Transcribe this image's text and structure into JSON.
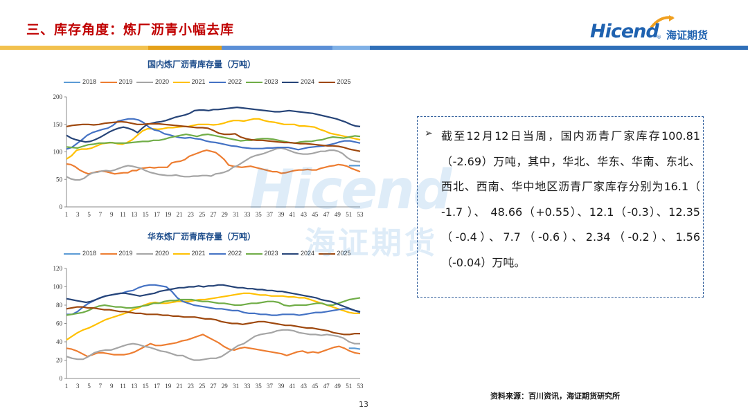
{
  "slide_title": "三、库存角度：炼厂沥青小幅去库",
  "logo": {
    "latin": "Hicend",
    "registered": "®",
    "chinese": "海证期货"
  },
  "watermark": {
    "latin": "Hicend",
    "chinese": "海证期货"
  },
  "colors": {
    "title": "#c00000",
    "band": [
      "#f2c14e",
      "#e5a11a",
      "#5b8fd6",
      "#7fb0e6",
      "#2f6fb8"
    ]
  },
  "textbox": {
    "bullet": "➢",
    "text": "截至12月12日当周，国内沥青厂家库存100.81（-2.69）万吨，其中，华北、华东、华南、东北、西北、西南、华中地区沥青厂家库存分别为16.1（ -1.7 ）、 48.66（+0.55）、12.1（-0.3）、12.35（-0.4）、7.7（-0.6）、2.34（-0.2）、1.56（-0.04）万吨。"
  },
  "source": "资料来源：百川资讯，海证期货研究所",
  "page_number": "13",
  "chart_data": [
    {
      "type": "line",
      "title": "国内炼厂沥青库存量（万吨）",
      "xlabel": "",
      "ylabel": "",
      "ylim": [
        0,
        200
      ],
      "yticks": [
        "0",
        "50",
        "100",
        "150",
        "200"
      ],
      "xticks": [
        "1",
        "3",
        "5",
        "7",
        "9",
        "11",
        "13",
        "15",
        "17",
        "19",
        "21",
        "23",
        "25",
        "27",
        "29",
        "31",
        "33",
        "35",
        "37",
        "39",
        "41",
        "43",
        "45",
        "47",
        "49",
        "51",
        "53"
      ],
      "grid": false,
      "legend": "top",
      "series": [
        {
          "name": "2018",
          "color": "#5b9bd5",
          "values": [
            null,
            null,
            null,
            null,
            null,
            null,
            null,
            null,
            null,
            null,
            null,
            null,
            null,
            null,
            null,
            null,
            null,
            null,
            null,
            null,
            null,
            null,
            null,
            null,
            null,
            null,
            null,
            null,
            null,
            null,
            null,
            null,
            null,
            null,
            null,
            null,
            null,
            null,
            null,
            null,
            null,
            null,
            null,
            null,
            null,
            null,
            null,
            null,
            null,
            null,
            75,
            75,
            75
          ]
        },
        {
          "name": "2019",
          "color": "#ed7d31",
          "values": [
            78,
            77,
            73,
            67,
            63,
            60,
            62,
            64,
            65,
            64,
            62,
            60,
            61,
            62,
            62,
            66,
            66,
            70,
            71,
            72,
            71,
            72,
            72,
            72,
            80,
            82,
            83,
            86,
            92,
            95,
            98,
            101,
            103,
            101,
            99,
            93,
            86,
            76,
            74,
            73,
            72,
            73,
            74,
            72,
            70,
            68,
            66,
            64,
            64,
            61,
            62,
            64,
            66,
            67,
            67,
            68,
            67,
            67,
            70,
            72,
            74,
            75,
            77,
            76,
            74,
            70,
            67,
            64
          ]
        },
        {
          "name": "2020",
          "color": "#a5a5a5",
          "values": [
            55,
            51,
            49,
            49,
            52,
            58,
            62,
            63,
            65,
            66,
            65,
            67,
            70,
            73,
            75,
            74,
            72,
            70,
            66,
            63,
            61,
            59,
            58,
            57,
            57,
            58,
            56,
            55,
            55,
            56,
            56,
            57,
            57,
            56,
            60,
            61,
            63,
            66,
            72,
            75,
            80,
            85,
            90,
            93,
            95,
            97,
            100,
            103,
            106,
            107,
            105,
            102,
            99,
            97,
            96,
            96,
            97,
            99,
            101,
            101,
            103,
            103,
            101,
            97,
            90,
            85,
            83,
            82
          ]
        },
        {
          "name": "2021",
          "color": "#ffc000",
          "values": [
            87,
            93,
            103,
            105,
            105,
            107,
            111,
            115,
            116,
            117,
            115,
            114,
            117,
            122,
            130,
            138,
            142,
            142,
            141,
            142,
            144,
            144,
            145,
            146,
            146,
            148,
            150,
            150,
            150,
            149,
            150,
            152,
            155,
            157,
            157,
            156,
            158,
            160,
            160,
            157,
            155,
            154,
            152,
            150,
            150,
            150,
            147,
            147,
            146,
            145,
            141,
            138,
            134,
            132,
            130,
            128,
            126,
            124,
            122
          ]
        },
        {
          "name": "2022",
          "color": "#4472c4",
          "values": [
            105,
            108,
            115,
            122,
            130,
            135,
            138,
            141,
            143,
            148,
            156,
            158,
            160,
            160,
            158,
            153,
            145,
            140,
            138,
            133,
            131,
            128,
            126,
            125,
            126,
            124,
            123,
            120,
            118,
            117,
            115,
            113,
            111,
            110,
            108,
            107,
            106,
            106,
            106,
            107,
            107,
            108,
            108,
            108,
            106,
            104,
            106,
            108,
            109,
            110,
            111,
            113,
            115,
            118,
            120,
            120,
            118,
            116
          ]
        },
        {
          "name": "2023",
          "color": "#70ad47",
          "values": [
            109,
            108,
            107,
            110,
            113,
            114,
            116,
            116,
            117,
            116,
            116,
            116,
            117,
            118,
            119,
            119,
            121,
            121,
            123,
            126,
            128,
            130,
            132,
            130,
            128,
            131,
            132,
            130,
            128,
            126,
            124,
            122,
            120,
            121,
            121,
            123,
            124,
            124,
            123,
            121,
            119,
            117,
            116,
            118,
            119,
            119,
            121,
            122,
            125,
            127,
            126,
            125,
            127,
            129,
            128
          ]
        },
        {
          "name": "2024",
          "color": "#264478",
          "values": [
            130,
            125,
            122,
            120,
            118,
            119,
            122,
            126,
            131,
            136,
            140,
            143,
            145,
            143,
            140,
            135,
            143,
            150,
            152,
            154,
            155,
            157,
            160,
            163,
            165,
            167,
            170,
            175,
            176,
            176,
            175,
            177,
            177,
            178,
            179,
            180,
            181,
            180,
            179,
            178,
            177,
            176,
            175,
            174,
            173,
            173,
            174,
            175,
            174,
            173,
            172,
            171,
            170,
            168,
            166,
            164,
            162,
            160,
            157,
            154,
            150,
            147,
            146
          ]
        },
        {
          "name": "2025",
          "color": "#9e480e",
          "values": [
            146,
            148,
            149,
            150,
            150,
            149,
            150,
            152,
            153,
            154,
            155,
            154,
            152,
            150,
            150,
            151,
            151,
            151,
            150,
            149,
            148,
            147,
            146,
            145,
            144,
            144,
            143,
            139,
            134,
            132,
            132,
            133,
            127,
            124,
            122,
            121,
            121,
            120,
            119,
            118,
            117,
            117,
            116,
            115,
            115,
            114,
            113,
            112,
            111,
            111,
            110,
            108,
            105,
            103,
            101
          ]
        }
      ]
    },
    {
      "type": "line",
      "title": "华东炼厂沥青库存量（万吨）",
      "xlabel": "",
      "ylabel": "",
      "ylim": [
        0,
        120
      ],
      "yticks": [
        "0",
        "20",
        "40",
        "60",
        "80",
        "100",
        "120"
      ],
      "xticks": [
        "1",
        "3",
        "5",
        "7",
        "9",
        "11",
        "13",
        "15",
        "17",
        "19",
        "21",
        "23",
        "25",
        "27",
        "29",
        "31",
        "33",
        "35",
        "37",
        "39",
        "41",
        "43",
        "45",
        "47",
        "49",
        "51",
        "53"
      ],
      "grid": false,
      "legend": "top",
      "series": [
        {
          "name": "2018",
          "color": "#5b9bd5",
          "values": [
            null,
            null,
            null,
            null,
            null,
            null,
            null,
            null,
            null,
            null,
            null,
            null,
            null,
            null,
            null,
            null,
            null,
            null,
            null,
            null,
            null,
            null,
            null,
            null,
            null,
            null,
            null,
            null,
            null,
            null,
            null,
            null,
            null,
            null,
            null,
            null,
            null,
            null,
            null,
            null,
            null,
            null,
            null,
            null,
            null,
            null,
            null,
            null,
            null,
            null,
            33,
            33,
            32
          ]
        },
        {
          "name": "2019",
          "color": "#ed7d31",
          "values": [
            33,
            32,
            30,
            27,
            24,
            26,
            28,
            28,
            27,
            26,
            26,
            26,
            27,
            29,
            32,
            35,
            38,
            36,
            36,
            37,
            38,
            39,
            41,
            42,
            44,
            46,
            48,
            45,
            42,
            39,
            35,
            32,
            31,
            33,
            34,
            33,
            32,
            31,
            30,
            29,
            28,
            27,
            25,
            27,
            29,
            30,
            28,
            29,
            28,
            30,
            32,
            34,
            35,
            33,
            30,
            28,
            27
          ]
        },
        {
          "name": "2020",
          "color": "#a5a5a5",
          "values": [
            24,
            22,
            21,
            21,
            24,
            28,
            30,
            31,
            31,
            33,
            35,
            37,
            38,
            37,
            35,
            34,
            32,
            30,
            29,
            27,
            25,
            25,
            22,
            20,
            20,
            21,
            22,
            22,
            24,
            28,
            32,
            36,
            38,
            42,
            46,
            48,
            49,
            50,
            52,
            53,
            53,
            52,
            50,
            49,
            48,
            48,
            47,
            48,
            47,
            46,
            44,
            40,
            38,
            38
          ]
        },
        {
          "name": "2021",
          "color": "#ffc000",
          "values": [
            42,
            46,
            50,
            53,
            55,
            58,
            61,
            64,
            66,
            68,
            70,
            72,
            75,
            77,
            80,
            82,
            83,
            82,
            82,
            83,
            84,
            84,
            84,
            85,
            86,
            86,
            87,
            88,
            89,
            90,
            91,
            92,
            93,
            93,
            92,
            91,
            91,
            90,
            90,
            90,
            89,
            89,
            88,
            88,
            86,
            84,
            82,
            80,
            78,
            76,
            74,
            72,
            71,
            71
          ]
        },
        {
          "name": "2022",
          "color": "#4472c4",
          "values": [
            70,
            70,
            73,
            78,
            82,
            85,
            88,
            90,
            91,
            92,
            93,
            95,
            96,
            99,
            101,
            102,
            102,
            101,
            100,
            95,
            88,
            84,
            82,
            80,
            79,
            78,
            77,
            76,
            76,
            75,
            74,
            74,
            72,
            71,
            71,
            70,
            70,
            69,
            69,
            70,
            70,
            70,
            69,
            70,
            71,
            72,
            72,
            73,
            74,
            75,
            76,
            76,
            74,
            72
          ]
        },
        {
          "name": "2023",
          "color": "#70ad47",
          "values": [
            69,
            70,
            71,
            72,
            74,
            77,
            79,
            80,
            79,
            78,
            78,
            77,
            77,
            78,
            79,
            80,
            82,
            82,
            84,
            85,
            85,
            86,
            86,
            86,
            85,
            84,
            84,
            83,
            82,
            82,
            81,
            80,
            80,
            81,
            82,
            82,
            83,
            84,
            84,
            83,
            80,
            79,
            80,
            80,
            80,
            81,
            82,
            82,
            80,
            80,
            82,
            84,
            86,
            87,
            88
          ]
        },
        {
          "name": "2024",
          "color": "#264478",
          "values": [
            87,
            86,
            85,
            84,
            83,
            84,
            86,
            88,
            90,
            91,
            92,
            93,
            93,
            92,
            91,
            90,
            91,
            92,
            93,
            95,
            96,
            97,
            98,
            99,
            99,
            100,
            100,
            101,
            100,
            101,
            101,
            102,
            102,
            101,
            100,
            99,
            99,
            98,
            98,
            97,
            97,
            96,
            96,
            95,
            95,
            94,
            93,
            92,
            91,
            90,
            89,
            88,
            86,
            85,
            84,
            82,
            80,
            78,
            76,
            74,
            73
          ]
        },
        {
          "name": "2025",
          "color": "#9e480e",
          "values": [
            76,
            77,
            78,
            78,
            77,
            77,
            76,
            75,
            75,
            74,
            73,
            73,
            72,
            71,
            71,
            70,
            70,
            70,
            69,
            69,
            68,
            68,
            67,
            67,
            67,
            66,
            65,
            65,
            64,
            62,
            61,
            60,
            60,
            59,
            60,
            61,
            62,
            62,
            61,
            60,
            59,
            58,
            58,
            57,
            56,
            55,
            55,
            54,
            53,
            52,
            50,
            49,
            48,
            48,
            49,
            49
          ]
        }
      ]
    }
  ]
}
